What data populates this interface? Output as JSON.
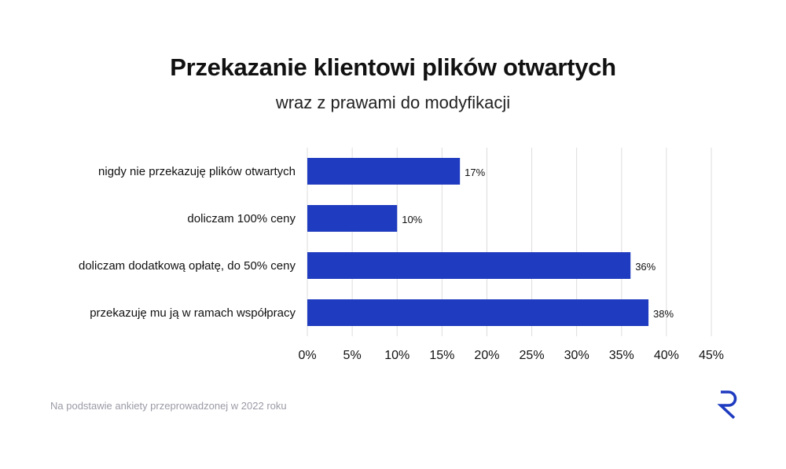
{
  "header": {
    "title": "Przekazanie klientowi plików otwartych",
    "subtitle": "wraz z prawami do modyfikacji"
  },
  "footer": {
    "note": "Na podstawie ankiety przeprowadzonej w 2022 roku",
    "logo_icon": "r-logo-icon"
  },
  "colors": {
    "bar": "#1f3bbf",
    "grid": "#dddddd",
    "text": "#111111",
    "logo": "#1f3bbf"
  },
  "chart_data": {
    "type": "bar",
    "orientation": "horizontal",
    "categories": [
      "nigdy nie przekazuję plików otwartych",
      "doliczam 100% ceny",
      "doliczam dodatkową opłatę, do 50% ceny",
      "przekazuję mu ją w ramach współpracy"
    ],
    "values": [
      17,
      10,
      36,
      38
    ],
    "value_labels": [
      "17%",
      "10%",
      "36%",
      "38%"
    ],
    "xlim": [
      0,
      45
    ],
    "xticks": [
      0,
      5,
      10,
      15,
      20,
      25,
      30,
      35,
      40,
      45
    ],
    "xtick_labels": [
      "0%",
      "5%",
      "10%",
      "15%",
      "20%",
      "25%",
      "30%",
      "35%",
      "40%",
      "45%"
    ],
    "grid": "vertical",
    "legend": "none"
  }
}
